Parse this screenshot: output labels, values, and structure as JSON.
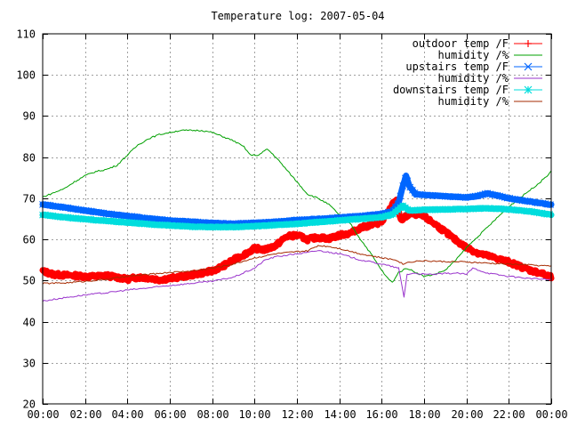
{
  "chart_data": {
    "type": "line",
    "title": "Temperature log: 2007-05-04",
    "xlabel": "",
    "ylabel": "",
    "xlim": [
      0,
      24
    ],
    "ylim": [
      20,
      110
    ],
    "x_tick_labels": [
      "00:00",
      "02:00",
      "04:00",
      "06:00",
      "08:00",
      "10:00",
      "12:00",
      "14:00",
      "16:00",
      "18:00",
      "20:00",
      "22:00",
      "00:00"
    ],
    "y_ticks": [
      20,
      30,
      40,
      50,
      60,
      70,
      80,
      90,
      100,
      110
    ],
    "grid": true,
    "legend_position": "top-right",
    "series": [
      {
        "name": "outdoor temp /F",
        "color": "#ff0000",
        "marker": "plus",
        "points": [
          [
            0,
            52.3
          ],
          [
            0.5,
            51.5
          ],
          [
            1,
            51.3
          ],
          [
            1.5,
            51.2
          ],
          [
            2,
            51
          ],
          [
            2.5,
            51
          ],
          [
            3,
            51.2
          ],
          [
            3.5,
            50.8
          ],
          [
            4,
            50.3
          ],
          [
            4.5,
            50.8
          ],
          [
            5,
            50.6
          ],
          [
            5.5,
            50.2
          ],
          [
            6,
            50.5
          ],
          [
            6.5,
            50.9
          ],
          [
            7,
            51.3
          ],
          [
            7.5,
            51.8
          ],
          [
            8,
            52.3
          ],
          [
            8.5,
            53.5
          ],
          [
            9,
            55
          ],
          [
            9.5,
            56.3
          ],
          [
            10,
            57.8
          ],
          [
            10.5,
            57.5
          ],
          [
            11,
            58.5
          ],
          [
            11.5,
            60.7
          ],
          [
            12,
            61
          ],
          [
            12.5,
            60
          ],
          [
            13,
            60.5
          ],
          [
            13.5,
            60.2
          ],
          [
            14,
            61
          ],
          [
            14.5,
            61.5
          ],
          [
            15,
            62.8
          ],
          [
            15.5,
            63.5
          ],
          [
            16,
            64.2
          ],
          [
            16.3,
            66.5
          ],
          [
            16.5,
            68.5
          ],
          [
            16.7,
            69.5
          ],
          [
            16.9,
            64.5
          ],
          [
            17.2,
            65.8
          ],
          [
            17.5,
            66.3
          ],
          [
            18,
            65.5
          ],
          [
            18.5,
            63.8
          ],
          [
            19,
            61.8
          ],
          [
            19.5,
            59.8
          ],
          [
            20,
            58
          ],
          [
            20.5,
            56.8
          ],
          [
            21,
            56
          ],
          [
            21.5,
            55.3
          ],
          [
            22,
            54.5
          ],
          [
            22.5,
            53.5
          ],
          [
            23,
            52.5
          ],
          [
            23.5,
            51.8
          ],
          [
            24,
            50.8
          ]
        ]
      },
      {
        "name": "humidity /%",
        "color": "#00a000",
        "marker": "none",
        "points": [
          [
            0,
            70.3
          ],
          [
            0.5,
            71.3
          ],
          [
            1,
            72.3
          ],
          [
            1.5,
            74
          ],
          [
            2,
            75.5
          ],
          [
            2.5,
            76.5
          ],
          [
            3,
            77
          ],
          [
            3.5,
            78
          ],
          [
            4,
            80.5
          ],
          [
            4.5,
            83
          ],
          [
            5,
            84.5
          ],
          [
            5.5,
            85.5
          ],
          [
            6,
            86
          ],
          [
            6.5,
            86.5
          ],
          [
            7,
            86.5
          ],
          [
            7.5,
            86.5
          ],
          [
            8,
            86
          ],
          [
            8.5,
            85
          ],
          [
            9,
            84
          ],
          [
            9.5,
            82.5
          ],
          [
            9.8,
            80.5
          ],
          [
            10.2,
            80.5
          ],
          [
            10.6,
            82
          ],
          [
            11,
            80
          ],
          [
            11.5,
            77
          ],
          [
            12,
            74
          ],
          [
            12.5,
            71
          ],
          [
            13,
            70
          ],
          [
            13.5,
            68.5
          ],
          [
            14,
            66
          ],
          [
            14.5,
            64
          ],
          [
            15,
            60
          ],
          [
            15.5,
            56.5
          ],
          [
            15.8,
            54
          ],
          [
            16.2,
            51
          ],
          [
            16.5,
            49.5
          ],
          [
            16.8,
            52
          ],
          [
            17.2,
            53
          ],
          [
            17.6,
            52
          ],
          [
            18,
            51
          ],
          [
            18.5,
            51.5
          ],
          [
            19,
            52.5
          ],
          [
            19.5,
            55
          ],
          [
            20,
            58
          ],
          [
            20.5,
            60.5
          ],
          [
            21,
            63
          ],
          [
            21.5,
            65.5
          ],
          [
            22,
            68
          ],
          [
            22.5,
            70
          ],
          [
            23,
            72
          ],
          [
            23.5,
            74
          ],
          [
            24,
            76.5
          ]
        ]
      },
      {
        "name": "upstairs temp /F",
        "color": "#0066ff",
        "marker": "cross",
        "points": [
          [
            0,
            68.5
          ],
          [
            1,
            67.8
          ],
          [
            2,
            67
          ],
          [
            3,
            66.3
          ],
          [
            4,
            65.7
          ],
          [
            5,
            65.1
          ],
          [
            6,
            64.6
          ],
          [
            7,
            64.3
          ],
          [
            8,
            64
          ],
          [
            9,
            63.8
          ],
          [
            10,
            64
          ],
          [
            11,
            64.3
          ],
          [
            12,
            64.7
          ],
          [
            13,
            65
          ],
          [
            14,
            65.3
          ],
          [
            15,
            65.7
          ],
          [
            16,
            66.2
          ],
          [
            16.5,
            66.8
          ],
          [
            16.8,
            69
          ],
          [
            17,
            73
          ],
          [
            17.15,
            75.5
          ],
          [
            17.3,
            73
          ],
          [
            17.6,
            71
          ],
          [
            18,
            70.8
          ],
          [
            19,
            70.5
          ],
          [
            20,
            70.2
          ],
          [
            20.5,
            70.5
          ],
          [
            21,
            71.2
          ],
          [
            21.5,
            70.6
          ],
          [
            22,
            70
          ],
          [
            23,
            69.2
          ],
          [
            24,
            68.4
          ]
        ]
      },
      {
        "name": "humidity /%",
        "color": "#9933cc",
        "marker": "none",
        "points": [
          [
            0,
            45
          ],
          [
            1,
            45.8
          ],
          [
            2,
            46.5
          ],
          [
            3,
            47
          ],
          [
            4,
            47.7
          ],
          [
            5,
            48.2
          ],
          [
            6,
            48.8
          ],
          [
            7,
            49.3
          ],
          [
            8,
            49.8
          ],
          [
            9,
            50.8
          ],
          [
            10,
            53
          ],
          [
            10.5,
            55
          ],
          [
            11,
            55.8
          ],
          [
            12,
            56.5
          ],
          [
            12.5,
            56.8
          ],
          [
            13,
            57.3
          ],
          [
            14,
            56.5
          ],
          [
            15,
            55
          ],
          [
            16,
            54
          ],
          [
            16.8,
            53
          ],
          [
            17.05,
            46
          ],
          [
            17.2,
            51.5
          ],
          [
            17.6,
            51.8
          ],
          [
            18,
            51.5
          ],
          [
            18.5,
            51.5
          ],
          [
            19,
            51.7
          ],
          [
            19.5,
            51.8
          ],
          [
            20,
            51.5
          ],
          [
            20.3,
            53
          ],
          [
            20.6,
            52.5
          ],
          [
            21,
            51.8
          ],
          [
            22,
            51
          ],
          [
            23,
            50.5
          ],
          [
            24,
            50.2
          ]
        ]
      },
      {
        "name": "downstairs temp /F",
        "color": "#00dddd",
        "marker": "star",
        "points": [
          [
            0,
            66
          ],
          [
            1,
            65.4
          ],
          [
            2,
            64.9
          ],
          [
            3,
            64.5
          ],
          [
            4,
            64.1
          ],
          [
            5,
            63.7
          ],
          [
            6,
            63.4
          ],
          [
            7,
            63.1
          ],
          [
            8,
            63
          ],
          [
            9,
            63
          ],
          [
            10,
            63.2
          ],
          [
            11,
            63.5
          ],
          [
            12,
            63.8
          ],
          [
            13,
            64.2
          ],
          [
            14,
            64.6
          ],
          [
            15,
            65
          ],
          [
            16,
            65.4
          ],
          [
            16.5,
            66
          ],
          [
            17,
            68.2
          ],
          [
            17.3,
            67
          ],
          [
            18,
            67.2
          ],
          [
            19,
            67.3
          ],
          [
            20,
            67.4
          ],
          [
            21,
            67.6
          ],
          [
            22,
            67.3
          ],
          [
            23,
            66.8
          ],
          [
            24,
            66
          ]
        ]
      },
      {
        "name": "humidity /%",
        "color": "#a52a00",
        "marker": "none",
        "points": [
          [
            0,
            49.3
          ],
          [
            1,
            49.4
          ],
          [
            2,
            49.8
          ],
          [
            3,
            50.3
          ],
          [
            4,
            51
          ],
          [
            5,
            51.5
          ],
          [
            6,
            52
          ],
          [
            7,
            52.3
          ],
          [
            8,
            53
          ],
          [
            9,
            54
          ],
          [
            10,
            55.5
          ],
          [
            11,
            56.5
          ],
          [
            12,
            57
          ],
          [
            12.5,
            57.2
          ],
          [
            13,
            58.5
          ],
          [
            13.5,
            58.3
          ],
          [
            14,
            57.8
          ],
          [
            15,
            56.5
          ],
          [
            16,
            55.5
          ],
          [
            16.7,
            55
          ],
          [
            17,
            54
          ],
          [
            17.3,
            54.5
          ],
          [
            17.8,
            54.8
          ],
          [
            18.5,
            54.7
          ],
          [
            19,
            54.6
          ],
          [
            20,
            54.5
          ],
          [
            21,
            54.2
          ],
          [
            22,
            54
          ],
          [
            23,
            53.8
          ],
          [
            24,
            53.5
          ]
        ]
      }
    ]
  }
}
